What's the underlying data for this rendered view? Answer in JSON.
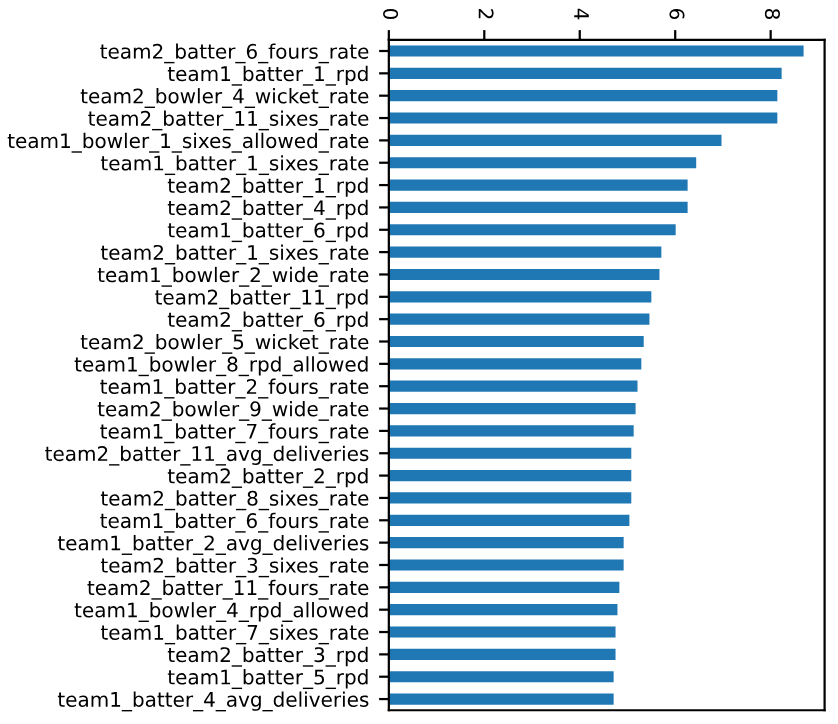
{
  "chart_data": {
    "type": "bar",
    "orientation": "horizontal",
    "color": "#1f77b4",
    "categories": [
      "team2_batter_6_fours_rate",
      "team1_batter_1_rpd",
      "team2_bowler_4_wicket_rate",
      "team2_batter_11_sixes_rate",
      "team1_bowler_1_sixes_allowed_rate",
      "team1_batter_1_sixes_rate",
      "team2_batter_1_rpd",
      "team2_batter_4_rpd",
      "team1_batter_6_rpd",
      "team2_batter_1_sixes_rate",
      "team1_bowler_2_wide_rate",
      "team2_batter_11_rpd",
      "team2_batter_6_rpd",
      "team2_bowler_5_wicket_rate",
      "team1_bowler_8_rpd_allowed",
      "team1_batter_2_fours_rate",
      "team2_bowler_9_wide_rate",
      "team1_batter_7_fours_rate",
      "team2_batter_11_avg_deliveries",
      "team2_batter_2_rpd",
      "team2_batter_8_sixes_rate",
      "team1_batter_6_fours_rate",
      "team1_batter_2_avg_deliveries",
      "team2_batter_3_sixes_rate",
      "team2_batter_11_fours_rate",
      "team1_bowler_4_rpd_allowed",
      "team1_batter_7_sixes_rate",
      "team2_batter_3_rpd",
      "team1_batter_5_rpd",
      "team1_batter_4_avg_deliveries"
    ],
    "values": [
      8.69,
      8.23,
      8.14,
      8.14,
      6.97,
      6.44,
      6.26,
      6.26,
      6.01,
      5.71,
      5.67,
      5.5,
      5.46,
      5.34,
      5.29,
      5.21,
      5.17,
      5.13,
      5.08,
      5.08,
      5.08,
      5.04,
      4.92,
      4.92,
      4.83,
      4.79,
      4.75,
      4.75,
      4.71,
      4.71
    ],
    "xlim": [
      0,
      9.13
    ],
    "xticks": [
      0,
      2,
      4,
      6,
      8
    ],
    "grid": false,
    "legend": false
  }
}
